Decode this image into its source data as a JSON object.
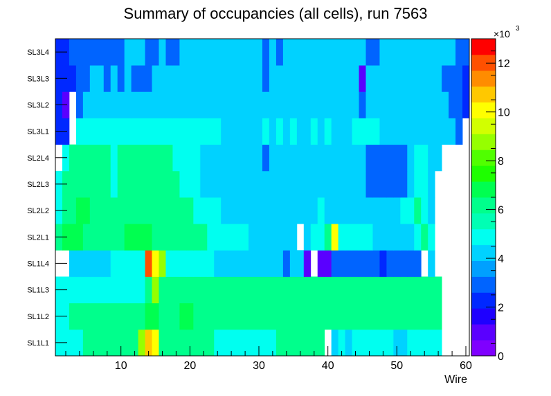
{
  "chart_data": {
    "type": "heatmap",
    "title": "Summary of occupancies (all cells),      run 7563",
    "xlabel": "Wire",
    "ylabel": "",
    "xlim": [
      0.5,
      60.5
    ],
    "x_ticks": [
      10,
      20,
      30,
      40,
      50,
      60
    ],
    "rows": [
      "SL1L1",
      "SL1L2",
      "SL1L3",
      "SL1L4",
      "SL2L1",
      "SL2L2",
      "SL2L3",
      "SL2L4",
      "SL3L1",
      "SL3L2",
      "SL3L3",
      "SL3L4"
    ],
    "z_range": [
      0,
      13000
    ],
    "z_ticks": [
      0,
      2,
      4,
      6,
      8,
      10,
      12
    ],
    "z_multiplier_label": "×10",
    "z_multiplier_exponent": "3",
    "values_x1000": {
      "SL1L1": [
        5,
        5,
        5,
        5,
        6,
        6,
        6,
        6,
        6,
        6,
        6,
        6,
        9,
        11,
        10,
        6,
        6,
        6,
        6,
        6,
        6,
        6,
        6,
        5,
        5,
        5,
        5,
        5,
        5,
        5,
        5,
        5,
        6,
        6,
        6,
        6,
        6,
        6,
        6,
        null,
        4,
        5,
        4,
        5,
        5,
        5,
        5,
        5,
        5,
        4,
        4,
        5,
        5,
        5,
        5,
        5,
        null,
        null,
        null,
        null
      ],
      "SL1L2": [
        5,
        5,
        6,
        6,
        6,
        6,
        6,
        6,
        6,
        6,
        6,
        6,
        6,
        7,
        7,
        6,
        6,
        6,
        7,
        7,
        6,
        6,
        6,
        6,
        6,
        6,
        6,
        6,
        6,
        6,
        6,
        6,
        6,
        6,
        6,
        6,
        6,
        6,
        6,
        6,
        6,
        6,
        6,
        6,
        6,
        6,
        6,
        6,
        6,
        6,
        6,
        6,
        6,
        6,
        6,
        6,
        null,
        null,
        null,
        null
      ],
      "SL1L3": [
        5,
        5,
        5,
        5,
        5,
        5,
        5,
        5,
        5,
        5,
        5,
        5,
        5,
        6,
        9,
        6,
        6,
        6,
        6,
        6,
        6,
        6,
        6,
        6,
        6,
        6,
        6,
        6,
        6,
        6,
        6,
        6,
        6,
        6,
        6,
        6,
        6,
        6,
        6,
        6,
        6,
        6,
        6,
        6,
        6,
        6,
        6,
        6,
        6,
        6,
        6,
        6,
        6,
        6,
        6,
        6,
        null,
        null,
        null,
        null
      ],
      "SL1L4": [
        null,
        null,
        4,
        4,
        4,
        4,
        4,
        4,
        5,
        5,
        5,
        5,
        5,
        12,
        10,
        9,
        5,
        5,
        5,
        5,
        5,
        5,
        5,
        4,
        4,
        4,
        4,
        4,
        4,
        4,
        4,
        4,
        4,
        3,
        4,
        4,
        1,
        null,
        1,
        1,
        3,
        3,
        3,
        3,
        3,
        3,
        3,
        2,
        3,
        3,
        3,
        3,
        3,
        null,
        4,
        null,
        null,
        null,
        null,
        null
      ],
      "SL2L1": [
        6,
        7,
        7,
        7,
        6,
        6,
        6,
        6,
        6,
        6,
        7,
        7,
        7,
        7,
        6,
        6,
        6,
        6,
        6,
        6,
        6,
        6,
        5,
        5,
        5,
        5,
        5,
        5,
        4,
        4,
        4,
        4,
        4,
        4,
        4,
        null,
        4,
        5,
        5,
        6,
        10,
        5,
        5,
        5,
        5,
        5,
        4,
        4,
        4,
        4,
        4,
        4,
        5,
        6,
        5,
        null,
        null,
        null,
        null,
        null
      ],
      "SL2L2": [
        5,
        6,
        6,
        7,
        7,
        6,
        6,
        6,
        6,
        6,
        6,
        6,
        6,
        6,
        6,
        6,
        6,
        6,
        6,
        6,
        5,
        5,
        5,
        5,
        4,
        4,
        4,
        4,
        4,
        4,
        4,
        4,
        4,
        4,
        4,
        4,
        4,
        4,
        5,
        4,
        4,
        4,
        4,
        4,
        4,
        4,
        4,
        4,
        4,
        4,
        5,
        5,
        6,
        5,
        4,
        null,
        null,
        null,
        null,
        null
      ],
      "SL2L3": [
        5,
        6,
        6,
        6,
        6,
        6,
        6,
        6,
        5,
        6,
        6,
        6,
        6,
        6,
        6,
        6,
        6,
        6,
        5,
        5,
        5,
        4,
        4,
        4,
        4,
        4,
        4,
        4,
        4,
        4,
        4,
        4,
        4,
        4,
        4,
        4,
        4,
        4,
        4,
        4,
        4,
        4,
        4,
        4,
        4,
        3,
        3,
        3,
        3,
        3,
        3,
        4,
        5,
        5,
        4,
        null,
        null,
        null,
        null,
        null
      ],
      "SL2L4": [
        null,
        5,
        6,
        6,
        6,
        6,
        6,
        6,
        5,
        6,
        6,
        6,
        6,
        6,
        6,
        6,
        6,
        5,
        5,
        5,
        5,
        4,
        4,
        4,
        4,
        4,
        4,
        4,
        4,
        4,
        3,
        4,
        4,
        4,
        4,
        4,
        4,
        4,
        4,
        4,
        4,
        4,
        4,
        4,
        4,
        3,
        3,
        3,
        3,
        3,
        3,
        4,
        5,
        5,
        4,
        4,
        null,
        null,
        null,
        null
      ],
      "SL3L1": [
        2,
        2,
        null,
        5,
        5,
        5,
        5,
        5,
        5,
        5,
        5,
        5,
        5,
        5,
        5,
        5,
        5,
        5,
        5,
        5,
        5,
        5,
        5,
        5,
        4,
        4,
        4,
        4,
        4,
        4,
        5,
        4,
        5,
        4,
        5,
        4,
        4,
        5,
        4,
        5,
        4,
        4,
        4,
        5,
        5,
        5,
        5,
        4,
        4,
        4,
        4,
        4,
        4,
        4,
        4,
        4,
        4,
        4,
        3,
        null
      ],
      "SL3L2": [
        2,
        1,
        null,
        3,
        4,
        4,
        4,
        4,
        4,
        4,
        4,
        4,
        4,
        4,
        4,
        4,
        4,
        4,
        4,
        4,
        4,
        4,
        4,
        4,
        4,
        4,
        4,
        4,
        4,
        4,
        4,
        4,
        4,
        4,
        4,
        4,
        4,
        4,
        4,
        4,
        4,
        4,
        4,
        4,
        3,
        4,
        4,
        4,
        4,
        4,
        4,
        4,
        4,
        4,
        4,
        4,
        4,
        3,
        3,
        2
      ],
      "SL3L3": [
        2,
        2,
        2,
        3,
        3,
        4,
        4,
        3,
        4,
        3,
        4,
        3,
        3,
        3,
        4,
        4,
        4,
        4,
        4,
        4,
        4,
        4,
        4,
        4,
        4,
        4,
        4,
        4,
        4,
        4,
        3,
        4,
        4,
        4,
        4,
        4,
        4,
        4,
        4,
        4,
        4,
        4,
        4,
        4,
        1,
        4,
        4,
        4,
        4,
        4,
        4,
        4,
        4,
        4,
        4,
        4,
        3,
        3,
        3,
        2
      ],
      "SL3L4": [
        2,
        2,
        3,
        3,
        3,
        3,
        3,
        3,
        3,
        3,
        4,
        4,
        4,
        3,
        3,
        4,
        3,
        3,
        4,
        4,
        4,
        4,
        4,
        4,
        4,
        4,
        4,
        4,
        4,
        4,
        3,
        4,
        3,
        4,
        4,
        4,
        4,
        4,
        4,
        4,
        4,
        4,
        4,
        4,
        4,
        3,
        3,
        4,
        4,
        4,
        4,
        4,
        4,
        4,
        4,
        4,
        4,
        4,
        3,
        3
      ]
    }
  }
}
